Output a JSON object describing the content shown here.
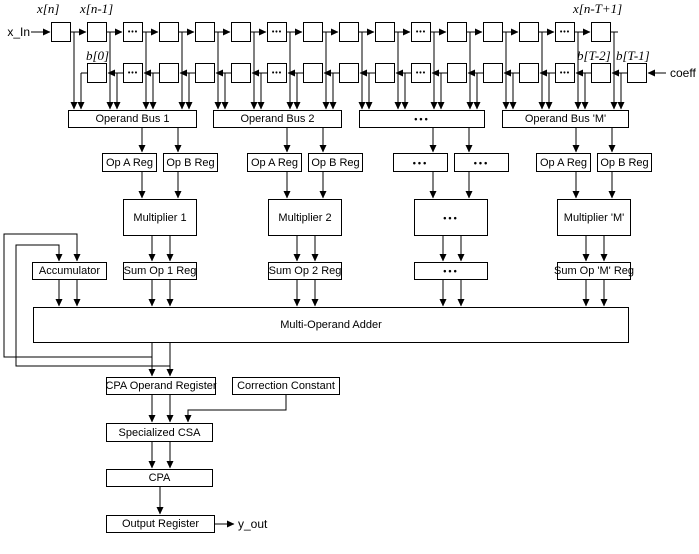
{
  "labels": {
    "x_in": "x_In",
    "coeff": "coeff",
    "y_out": "y_out",
    "x_n": "x[n]",
    "x_n_1": "x[n-1]",
    "x_n_T_1": "x[n-T+1]",
    "b_0": "b[0]",
    "b_T_2": "b[T-2]",
    "b_T_1": "b[T-1]",
    "dots": "•••"
  },
  "boxes": {
    "bus1": "Operand Bus 1",
    "bus2": "Operand Bus 2",
    "busM": "Operand Bus 'M'",
    "op_a_reg": "Op A Reg",
    "op_b_reg": "Op B Reg",
    "mult1": "Multiplier 1",
    "mult2": "Multiplier 2",
    "multM": "Multiplier 'M'",
    "accumulator": "Accumulator",
    "sum1": "Sum Op 1 Reg",
    "sum2": "Sum Op 2 Reg",
    "sumM": "Sum Op 'M' Reg",
    "adder": "Multi-Operand Adder",
    "cpa_operand_register": "CPA Operand Register",
    "correction_constant": "Correction Constant",
    "specialized_csa": "Specialized CSA",
    "cpa": "CPA",
    "output_register": "Output Register"
  }
}
